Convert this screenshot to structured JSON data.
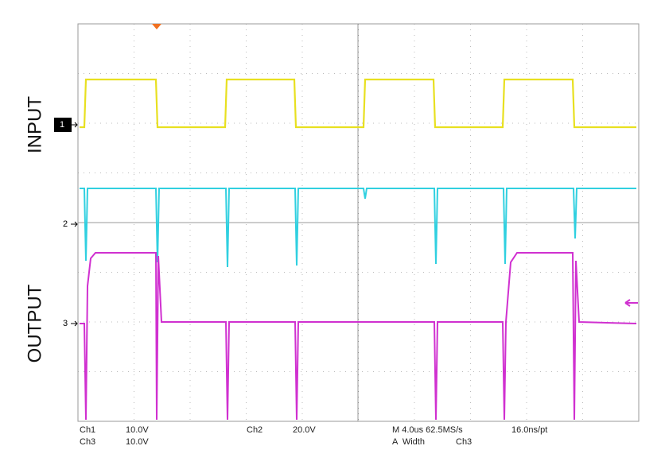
{
  "labels": {
    "input": "INPUT",
    "output": "OUTPUT"
  },
  "markers": [
    "1",
    "2",
    "3"
  ],
  "readouts": {
    "row1": [
      "Ch1",
      "10.0V",
      "Ch2",
      "20.0V",
      "M 4.0us 62.5MS/s",
      "16.0ns/pt"
    ],
    "row2": [
      "Ch3",
      "10.0V",
      "A  Width",
      "Ch3"
    ]
  }
}
